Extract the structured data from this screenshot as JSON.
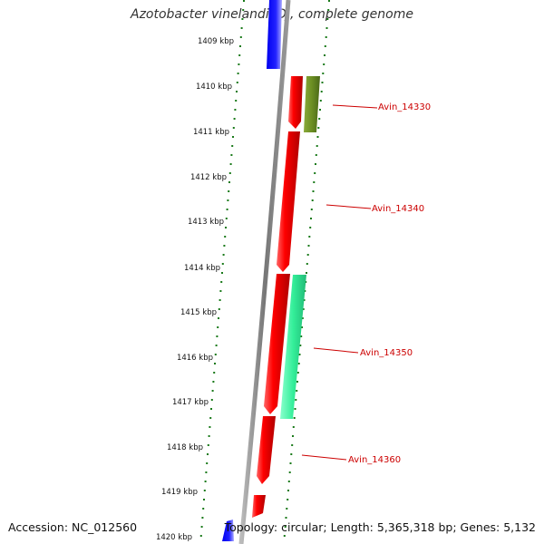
{
  "title": "Azotobacter vinelandii DJ, complete genome",
  "footer": {
    "accession": "Accession: NC_012560",
    "topology": "Topology: circular; Length: 5,365,318 bp; Genes: 5,132"
  },
  "ticks": [
    "1409 kbp",
    "1410 kbp",
    "1411 kbp",
    "1412 kbp",
    "1413 kbp",
    "1414 kbp",
    "1415 kbp",
    "1416 kbp",
    "1417 kbp",
    "1418 kbp",
    "1419 kbp",
    "1420 kbp"
  ],
  "gene_labels": [
    "Avin_14330",
    "Avin_14340",
    "Avin_14350",
    "Avin_14360"
  ],
  "colors": {
    "forward_gene": "#ff1a1a",
    "reverse_gene": "#1a1aff",
    "gene_olive": "#6b8e23",
    "gene_aqua": "#33ee99",
    "backbone": "#888888",
    "tick": "#1a7a1a",
    "label": "#cc0000"
  }
}
